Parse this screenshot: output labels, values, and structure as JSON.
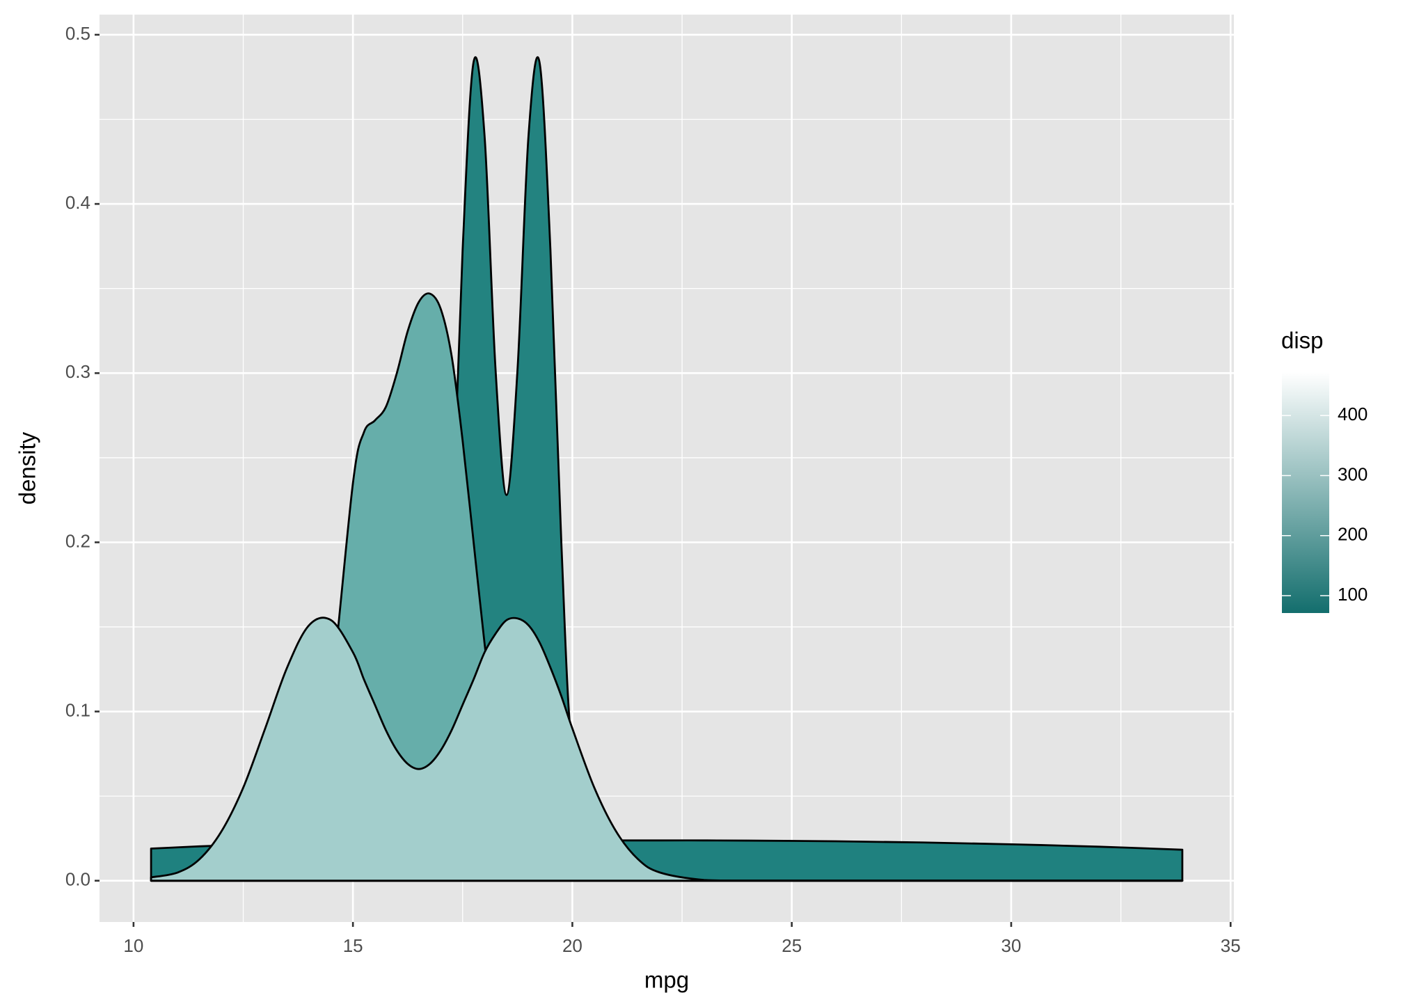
{
  "chart_data": {
    "type": "area",
    "x_label": "mpg",
    "y_label": "density",
    "xlim": [
      9.225,
      35.075
    ],
    "ylim": [
      -0.0244,
      0.5119
    ],
    "xticks": [
      10,
      15,
      20,
      25,
      30,
      35
    ],
    "yticks": [
      {
        "value": 0,
        "label": "0.0"
      },
      0.1,
      0.2,
      0.3,
      0.4,
      0.5
    ],
    "grid": true,
    "outline_color": "#000000",
    "x": [
      10.4,
      11,
      11.5,
      12,
      12.5,
      13,
      13.5,
      14,
      14.5,
      15,
      15.25,
      15.5,
      15.75,
      16,
      16.25,
      16.5,
      16.75,
      17,
      17.25,
      17.5,
      17.75,
      18,
      18.25,
      18.5,
      18.75,
      19,
      19.25,
      19.5,
      19.75,
      20,
      20.5,
      21,
      21.5,
      22,
      23,
      24,
      26,
      28,
      30,
      32,
      33.9
    ],
    "series": [
      {
        "color": "#1f817f",
        "values": [
          0.019,
          0.0197,
          0.0203,
          0.0208,
          0.0212,
          0.0216,
          0.0219,
          0.0222,
          0.0224,
          0.0226,
          0.0227,
          0.0228,
          0.0229,
          0.023,
          0.023,
          0.0231,
          0.0232,
          0.0232,
          0.0233,
          0.0233,
          0.0234,
          0.0234,
          0.0235,
          0.0235,
          0.0236,
          0.0236,
          0.0236,
          0.0237,
          0.0237,
          0.0237,
          0.0238,
          0.0238,
          0.0238,
          0.0238,
          0.0238,
          0.0237,
          0.0233,
          0.0226,
          0.0215,
          0.0201,
          0.0183
        ]
      },
      {
        "color": "#238380",
        "values": [
          0,
          0,
          0,
          0,
          0,
          0,
          0,
          0,
          0,
          0,
          0,
          0,
          0,
          0,
          0,
          0.003,
          0.019,
          0.074,
          0.199,
          0.373,
          0.484,
          0.44,
          0.302,
          0.228,
          0.302,
          0.44,
          0.484,
          0.373,
          0.199,
          0.074,
          0.003,
          0,
          0,
          0,
          0,
          0,
          0,
          0,
          0,
          0,
          0
        ]
      },
      {
        "color": "#66aeaa",
        "values": [
          0,
          0,
          0,
          0,
          0,
          0,
          0.002,
          0.02,
          0.11,
          0.235,
          0.265,
          0.272,
          0.28,
          0.3,
          0.325,
          0.342,
          0.347,
          0.338,
          0.31,
          0.26,
          0.2,
          0.14,
          0.09,
          0.05,
          0.025,
          0.01,
          0.004,
          0.001,
          0,
          0,
          0,
          0,
          0,
          0,
          0,
          0,
          0,
          0,
          0,
          0,
          0
        ]
      },
      {
        "color": "#a3cecc",
        "values": [
          0.002,
          0.0048,
          0.0126,
          0.029,
          0.055,
          0.09,
          0.126,
          0.151,
          0.154,
          0.135,
          0.119,
          0.104,
          0.089,
          0.077,
          0.069,
          0.066,
          0.069,
          0.077,
          0.089,
          0.104,
          0.119,
          0.135,
          0.146,
          0.154,
          0.155,
          0.151,
          0.141,
          0.126,
          0.109,
          0.09,
          0.055,
          0.029,
          0.0126,
          0.0048,
          0.0004,
          0,
          0,
          0,
          0,
          0,
          0
        ]
      }
    ],
    "legend": {
      "title": "disp",
      "lim": [
        71.1,
        472
      ],
      "ticks": [
        100,
        200,
        300,
        400
      ],
      "colors": [
        "#136e6d",
        "#ffffff"
      ]
    }
  }
}
